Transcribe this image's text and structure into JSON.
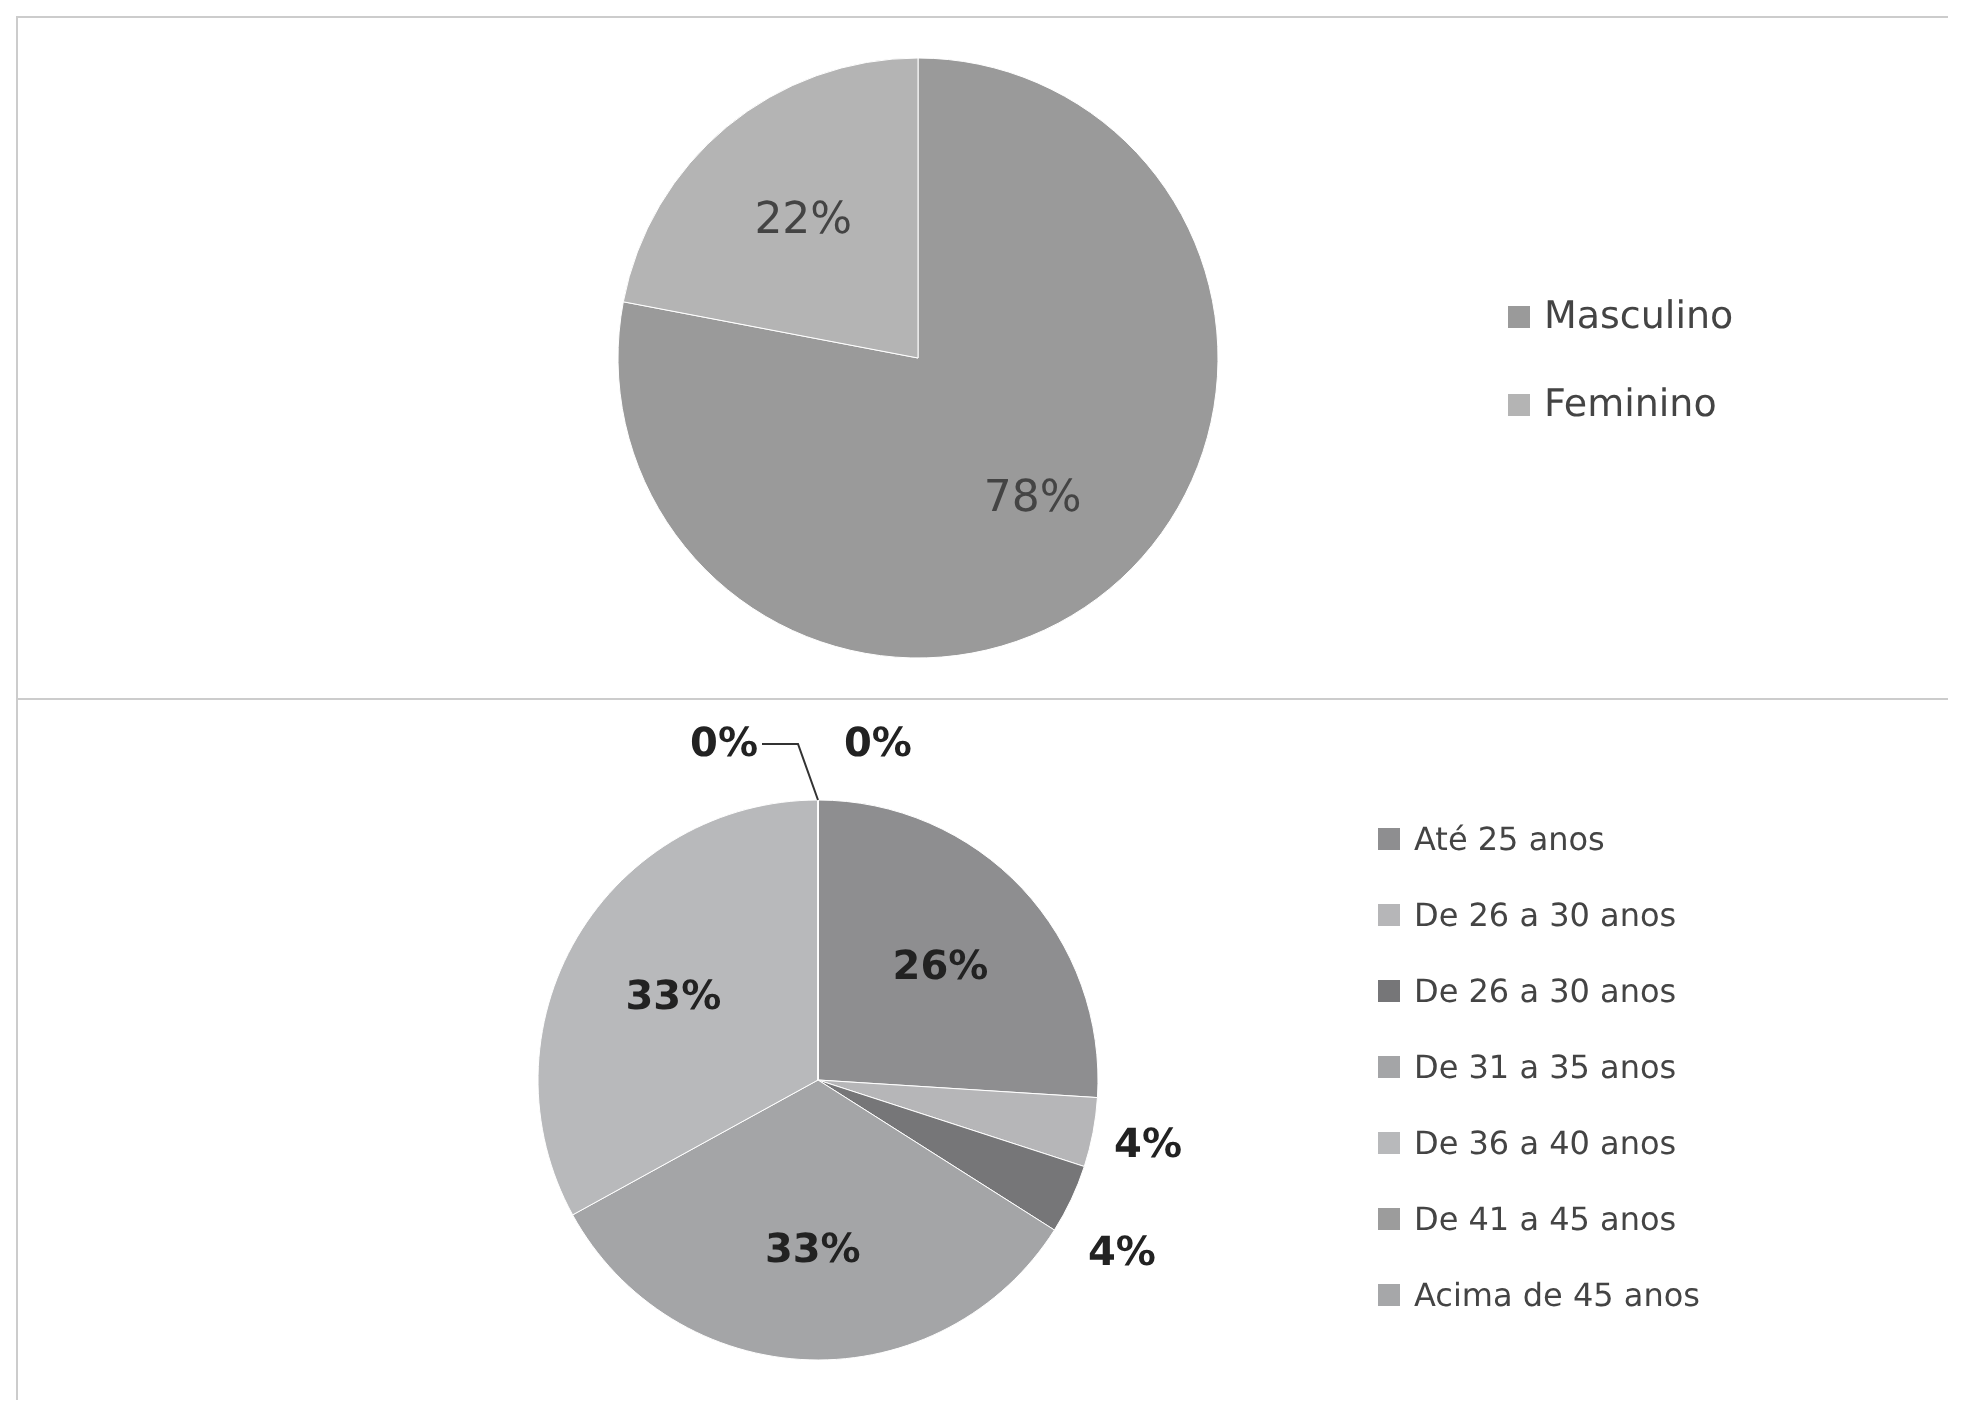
{
  "chart_data": [
    {
      "type": "pie",
      "categories": [
        "Masculino",
        "Feminino"
      ],
      "values": [
        78,
        22
      ],
      "value_labels": [
        "78%",
        "22%"
      ],
      "colors": [
        "#9a9a9a",
        "#b4b4b4"
      ],
      "data_labels": true,
      "legend": "right"
    },
    {
      "type": "pie",
      "categories": [
        "Até 25 anos",
        "De 26 a 30 anos",
        "De 26 a 30 anos",
        "De 31 a 35 anos",
        "De 36 a 40 anos",
        "De 41 a 45 anos",
        "Acima de 45 anos"
      ],
      "values": [
        26,
        4,
        4,
        33,
        33,
        0,
        0
      ],
      "value_labels": [
        "26%",
        "4%",
        "4%",
        "33%",
        "33%",
        "0%",
        "0%"
      ],
      "colors": [
        "#8e8e90",
        "#b6b6b8",
        "#767678",
        "#a4a5a7",
        "#b8b9bb",
        "#9c9c9c",
        "#a6a7a9"
      ],
      "data_labels": true,
      "legend": "right"
    }
  ]
}
